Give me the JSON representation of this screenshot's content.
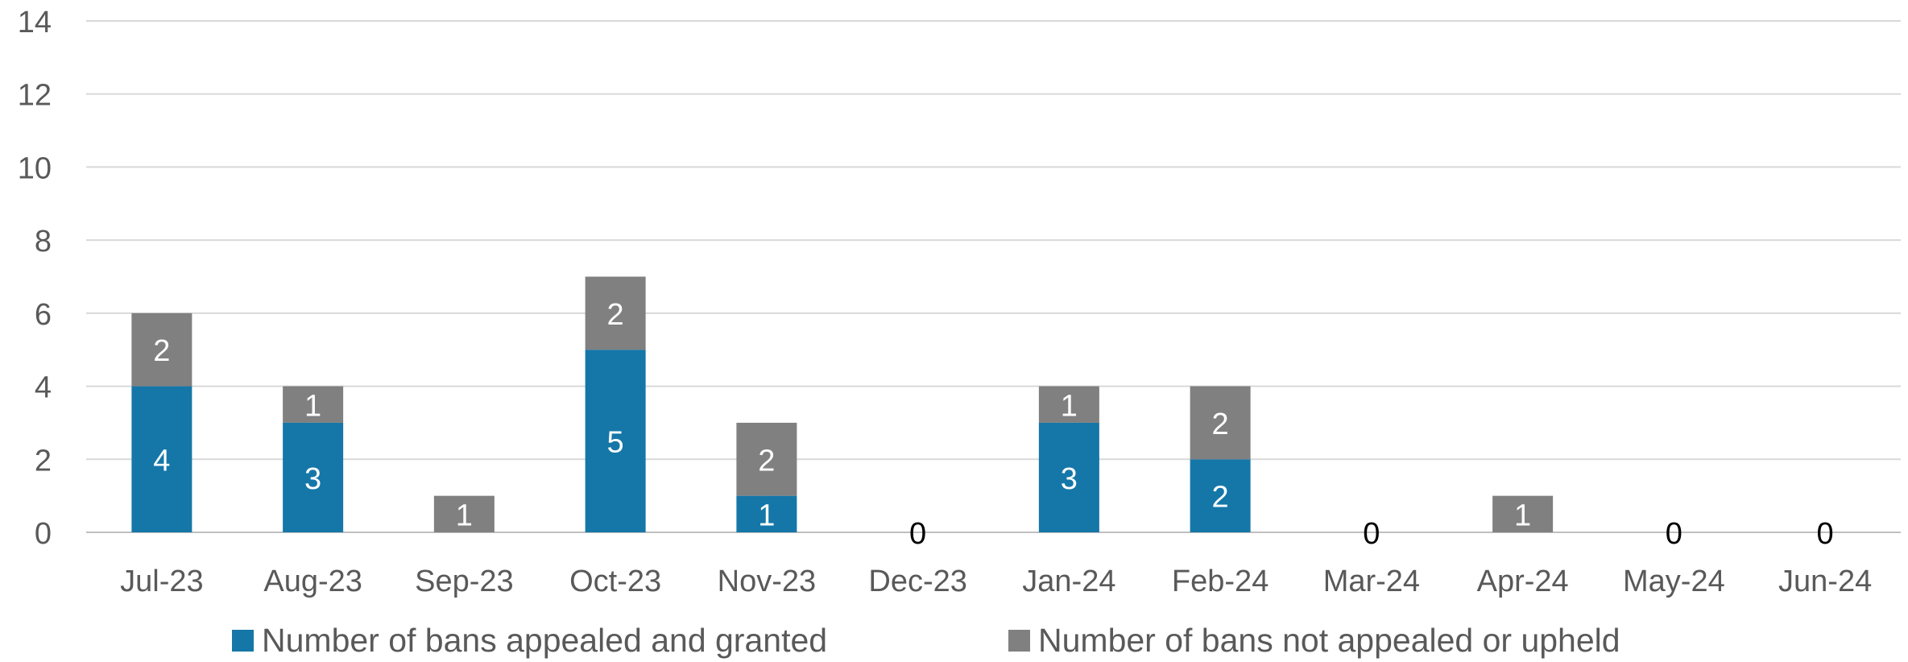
{
  "chart_data": {
    "type": "bar",
    "stacked": true,
    "categories": [
      "Jul-23",
      "Aug-23",
      "Sep-23",
      "Oct-23",
      "Nov-23",
      "Dec-23",
      "Jan-24",
      "Feb-24",
      "Mar-24",
      "Apr-24",
      "May-24",
      "Jun-24"
    ],
    "series": [
      {
        "name": "Number of bans appealed and granted",
        "color": "#1577A8",
        "values": [
          4,
          3,
          0,
          5,
          1,
          0,
          3,
          2,
          0,
          0,
          0,
          0
        ]
      },
      {
        "name": "Number of bans not appealed or upheld",
        "color": "#808080",
        "values": [
          2,
          1,
          1,
          2,
          2,
          0,
          1,
          2,
          0,
          1,
          0,
          0
        ]
      }
    ],
    "ylim": [
      0,
      14
    ],
    "yticks": [
      0,
      2,
      4,
      6,
      8,
      10,
      12,
      14
    ],
    "grid": true,
    "legend": "bottom",
    "zero_labels": [
      "0",
      "0",
      "0",
      "0"
    ]
  }
}
